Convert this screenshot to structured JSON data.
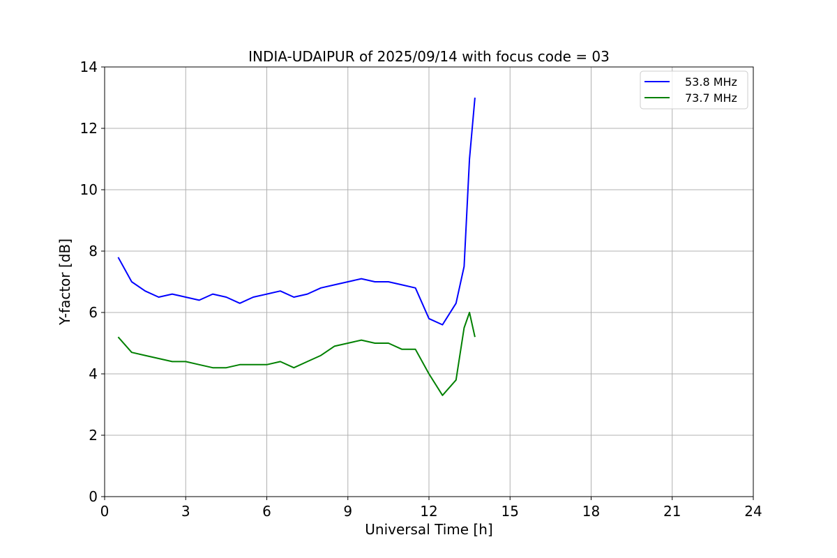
{
  "chart_data": {
    "type": "line",
    "title": "INDIA-UDAIPUR of 2025/09/14 with focus code = 03",
    "xlabel": "Universal Time [h]",
    "ylabel": "Y-factor [dB]",
    "xlim": [
      0,
      24
    ],
    "ylim": [
      0,
      14
    ],
    "xticks": [
      0,
      3,
      6,
      9,
      12,
      15,
      18,
      21,
      24
    ],
    "yticks": [
      0,
      2,
      4,
      6,
      8,
      10,
      12,
      14
    ],
    "grid": true,
    "legend_position": "top-right",
    "series": [
      {
        "name": "53.8 MHz",
        "color": "#0000ff",
        "x": [
          0.5,
          1.0,
          1.5,
          2.0,
          2.5,
          3.0,
          3.5,
          4.0,
          4.5,
          5.0,
          5.5,
          6.0,
          6.5,
          7.0,
          7.5,
          8.0,
          8.5,
          9.0,
          9.5,
          10.0,
          10.5,
          11.0,
          11.5,
          12.0,
          12.5,
          13.0,
          13.3,
          13.5,
          13.7
        ],
        "y": [
          7.8,
          7.0,
          6.7,
          6.5,
          6.6,
          6.5,
          6.4,
          6.6,
          6.5,
          6.3,
          6.5,
          6.6,
          6.7,
          6.5,
          6.6,
          6.8,
          6.9,
          7.0,
          7.1,
          7.0,
          7.0,
          6.9,
          6.8,
          5.8,
          5.6,
          6.3,
          7.5,
          11.0,
          13.0
        ]
      },
      {
        "name": "73.7 MHz",
        "color": "#008000",
        "x": [
          0.5,
          1.0,
          1.5,
          2.0,
          2.5,
          3.0,
          3.5,
          4.0,
          4.5,
          5.0,
          5.5,
          6.0,
          6.5,
          7.0,
          7.5,
          8.0,
          8.5,
          9.0,
          9.5,
          10.0,
          10.5,
          11.0,
          11.5,
          12.0,
          12.5,
          13.0,
          13.3,
          13.5,
          13.7
        ],
        "y": [
          5.2,
          4.7,
          4.6,
          4.5,
          4.4,
          4.4,
          4.3,
          4.2,
          4.2,
          4.3,
          4.3,
          4.3,
          4.4,
          4.2,
          4.4,
          4.6,
          4.9,
          5.0,
          5.1,
          5.0,
          5.0,
          4.8,
          4.8,
          4.0,
          3.3,
          3.8,
          5.5,
          6.0,
          5.2
        ]
      }
    ]
  }
}
